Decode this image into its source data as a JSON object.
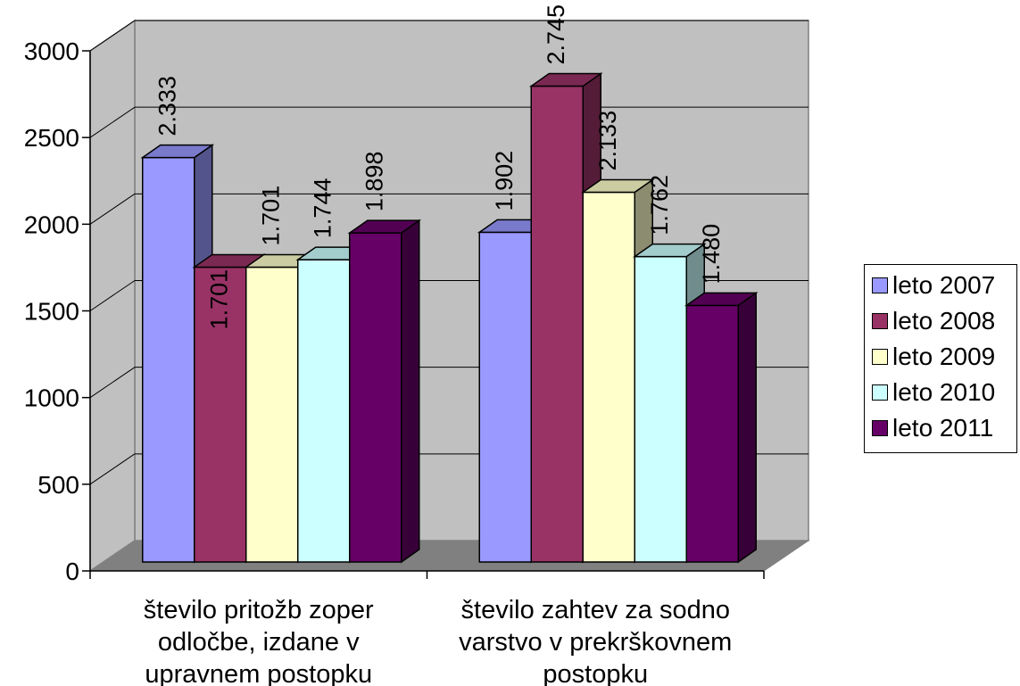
{
  "chart_data": {
    "type": "bar",
    "three_d": true,
    "categories": [
      [
        "število pritožb zoper",
        "odločbe, izdane v",
        "upravnem postopku"
      ],
      [
        "število zahtev za sodno",
        "varstvo v prekrškovnem",
        "postopku"
      ]
    ],
    "series": [
      {
        "name": "leto 2007",
        "values": [
          2333,
          1902
        ],
        "labels": [
          "2.333",
          "1.902"
        ],
        "color": "#9999ff"
      },
      {
        "name": "leto 2008",
        "values": [
          1701,
          2745
        ],
        "labels": [
          "1.701",
          "2.745"
        ],
        "color": "#993366"
      },
      {
        "name": "leto 2009",
        "values": [
          1701,
          2133
        ],
        "labels": [
          "1.701",
          "2.133"
        ],
        "color": "#ffffcc"
      },
      {
        "name": "leto 2010",
        "values": [
          1744,
          1762
        ],
        "labels": [
          "1.744",
          "1.762"
        ],
        "color": "#ccffff"
      },
      {
        "name": "leto 2011",
        "values": [
          1898,
          1480
        ],
        "labels": [
          "1.898",
          "1.480"
        ],
        "color": "#660066"
      }
    ],
    "y_ticks": [
      "0",
      "500",
      "1000",
      "1500",
      "2000",
      "2500",
      "3000"
    ],
    "ylim": [
      0,
      3000
    ],
    "grid": true,
    "wall_color": "#c0c0c0",
    "floor_color": "#808080",
    "legend_position": "right"
  }
}
